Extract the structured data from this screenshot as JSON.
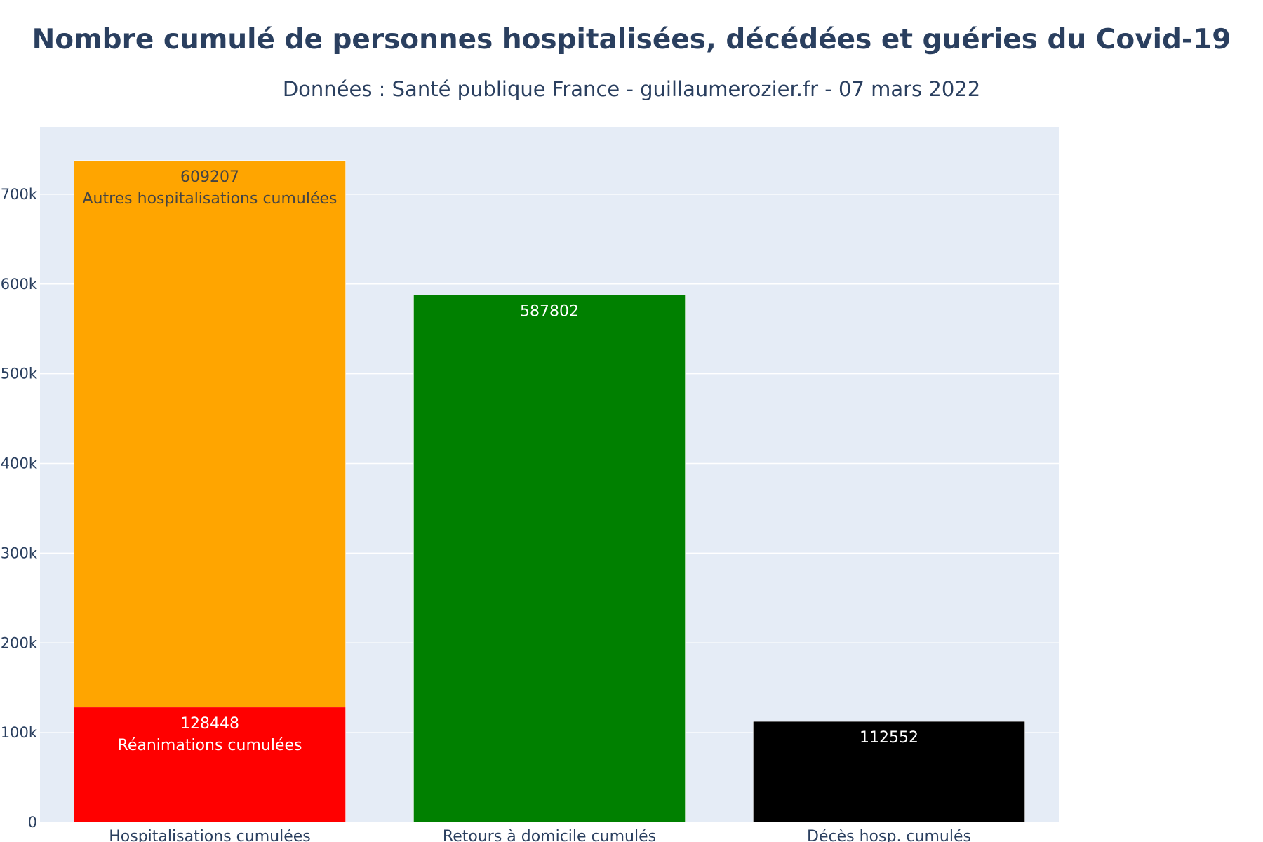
{
  "chart_data": {
    "type": "bar",
    "barmode": "stack",
    "title": "Nombre cumulé de personnes hospitalisées, décédées et guéries du Covid-19",
    "subtitle": "Données : Santé publique France  -  guillaumerozier.fr  -  07 mars 2022",
    "categories": [
      "Hospitalisations cumulées",
      "Retours à domicile cumulés",
      "Décès hosp. cumulés"
    ],
    "ylim": [
      0,
      775000
    ],
    "yticks": [
      {
        "value": 0,
        "label": "0"
      },
      {
        "value": 100000,
        "label": "100k"
      },
      {
        "value": 200000,
        "label": "200k"
      },
      {
        "value": 300000,
        "label": "300k"
      },
      {
        "value": 400000,
        "label": "400k"
      },
      {
        "value": 500000,
        "label": "500k"
      },
      {
        "value": 600000,
        "label": "600k"
      },
      {
        "value": 700000,
        "label": "700k"
      }
    ],
    "grid": true,
    "plot_background": "#e5ecf6",
    "segments": [
      {
        "category": 0,
        "base": 0,
        "value": 128448,
        "color": "#ff0000",
        "label_value": "128448",
        "label_name": "Réanimations cumulées",
        "label_color": "#ffffff"
      },
      {
        "category": 0,
        "base": 128448,
        "value": 609207,
        "color": "#ffa500",
        "label_value": "609207",
        "label_name": "Autres hospitalisations cumulées",
        "label_color": "#444444"
      },
      {
        "category": 1,
        "base": 0,
        "value": 587802,
        "color": "#008000",
        "label_value": "587802",
        "label_name": "",
        "label_color": "#ffffff"
      },
      {
        "category": 2,
        "base": 0,
        "value": 112552,
        "color": "#000000",
        "label_value": "112552",
        "label_name": "",
        "label_color": "#ffffff"
      }
    ]
  }
}
